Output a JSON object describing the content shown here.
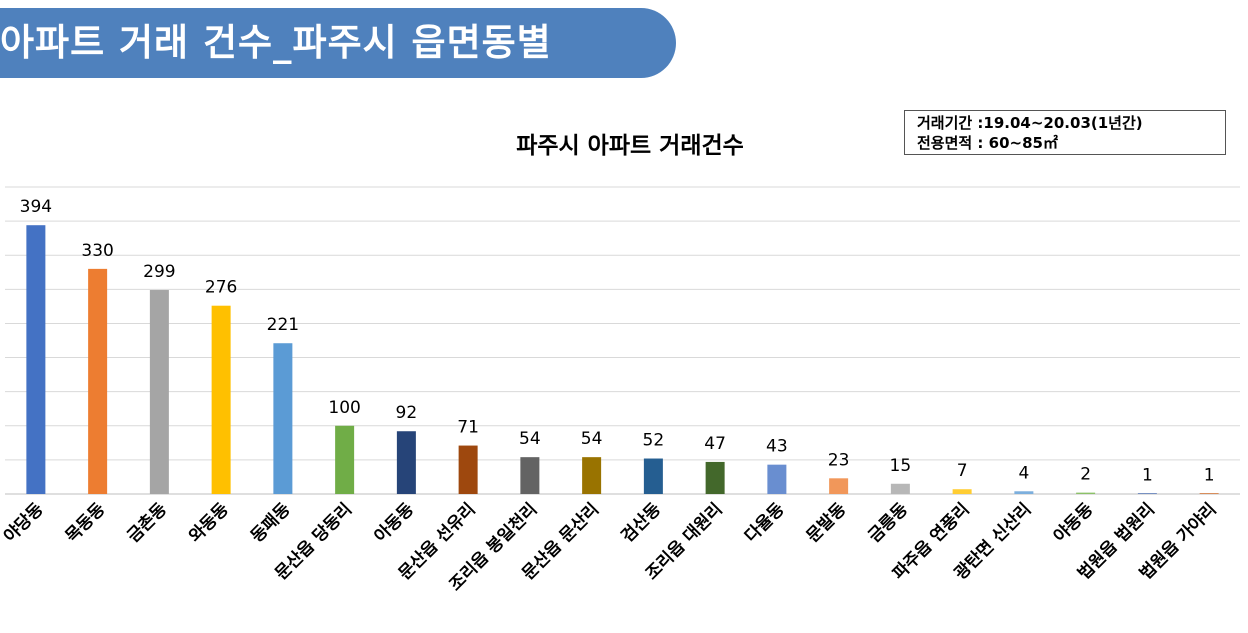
{
  "header": {
    "title": "아파트 거래 건수_파주시 읍면동별"
  },
  "info_box": {
    "period": "거래기간 :19.04~20.03(1년간)",
    "area": "전용면적 : 60~85㎡"
  },
  "chart_data": {
    "type": "bar",
    "title": "파주시 아파트 거래건수",
    "xlabel": "",
    "ylabel": "",
    "ylim": [
      0,
      450
    ],
    "grid": true,
    "categories": [
      "야당동",
      "목동동",
      "금촌동",
      "와동동",
      "동패동",
      "문산읍 당동리",
      "아동동",
      "문산읍 선유리",
      "조리읍 봉일천리",
      "문산읍 문산리",
      "검산동",
      "조리읍 대원리",
      "다율동",
      "문발동",
      "금릉동",
      "파주읍 연풍리",
      "광탄면 신산리",
      "야동동",
      "법원읍 법원리",
      "법원읍 가야리"
    ],
    "values": [
      394,
      330,
      299,
      276,
      221,
      100,
      92,
      71,
      54,
      54,
      52,
      47,
      43,
      23,
      15,
      7,
      4,
      2,
      1,
      1
    ],
    "colors": [
      "#4472c4",
      "#ed7d31",
      "#a5a5a5",
      "#ffc000",
      "#5b9bd5",
      "#70ad47",
      "#264478",
      "#9e480e",
      "#636363",
      "#997300",
      "#255e91",
      "#43682b",
      "#698ed0",
      "#f1975a",
      "#b7b7b7",
      "#ffcd33",
      "#7cafdd",
      "#8cc168",
      "#3a5ea5",
      "#c55a11"
    ]
  }
}
